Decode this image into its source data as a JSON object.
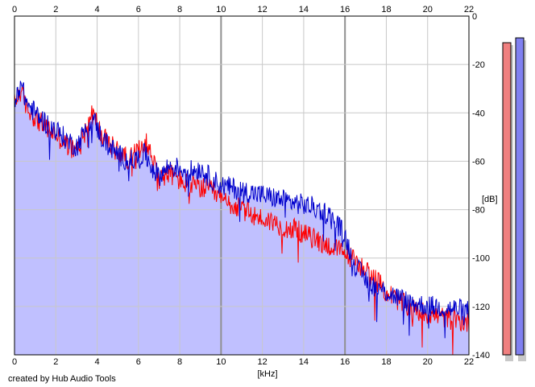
{
  "credit": "created by Hub Audio Tools",
  "colors": {
    "background": "#ffffff",
    "plot_background": "#ffffff",
    "fill": "#c0c0ff",
    "grid_minor": "#c8c8c8",
    "grid_major": "#909090",
    "left_channel": "#ff0000",
    "right_channel": "#0000cc",
    "meter_left": "#f08080",
    "meter_right": "#8080f0",
    "meter_shadow": "#c8c8c8"
  },
  "chart_data": {
    "type": "line",
    "xlabel": "[kHz]",
    "ylabel": "[dB]",
    "xlim": [
      0,
      22
    ],
    "ylim": [
      -140,
      0
    ],
    "x_ticks": [
      "0",
      "2",
      "4",
      "6",
      "8",
      "10",
      "12",
      "14",
      "16",
      "18",
      "20",
      "22"
    ],
    "x_tick_values": [
      0,
      2,
      4,
      6,
      8,
      10,
      12,
      14,
      16,
      18,
      20,
      22
    ],
    "y_ticks": [
      "0",
      "-20",
      "-40",
      "-60",
      "-80",
      "-100",
      "-120",
      "-140"
    ],
    "y_tick_values": [
      0,
      -20,
      -40,
      -60,
      -80,
      -100,
      -120,
      -140
    ],
    "grid": true,
    "major_x_gridlines": [
      10,
      16
    ],
    "series": [
      {
        "color": "#ff0000",
        "x": [
          0,
          0.3,
          0.6,
          1.0,
          1.5,
          2.0,
          2.5,
          3.0,
          3.5,
          3.8,
          4.2,
          4.6,
          5.0,
          5.5,
          6.0,
          6.3,
          6.7,
          7.0,
          7.5,
          8.0,
          8.5,
          9.0,
          9.5,
          10.0,
          10.5,
          11.0,
          11.5,
          12.0,
          12.5,
          13.0,
          13.5,
          14.0,
          14.5,
          15.0,
          15.5,
          16.0,
          16.5,
          17.0,
          17.5,
          18.0,
          18.5,
          19.0,
          19.5,
          20.0,
          20.5,
          21.0,
          21.5,
          22.0
        ],
        "values": [
          -36,
          -31,
          -38,
          -42,
          -46,
          -49,
          -53,
          -56,
          -45,
          -40,
          -49,
          -53,
          -56,
          -59,
          -56,
          -51,
          -59,
          -67,
          -65,
          -68,
          -70,
          -71,
          -72,
          -76,
          -78,
          -80,
          -82,
          -84,
          -85,
          -87,
          -88,
          -90,
          -92,
          -94,
          -96,
          -98,
          -101,
          -105,
          -109,
          -114,
          -117,
          -120,
          -122,
          -123,
          -124,
          -125,
          -126,
          -127
        ]
      },
      {
        "color": "#0000cc",
        "x": [
          0,
          0.3,
          0.6,
          1.0,
          1.5,
          2.0,
          2.5,
          3.0,
          3.5,
          3.8,
          4.2,
          4.6,
          5.0,
          5.5,
          6.0,
          6.3,
          6.7,
          7.0,
          7.5,
          8.0,
          8.5,
          9.0,
          9.5,
          10.0,
          10.5,
          11.0,
          11.5,
          12.0,
          12.5,
          13.0,
          13.5,
          14.0,
          14.5,
          15.0,
          15.5,
          16.0,
          16.5,
          17.0,
          17.5,
          18.0,
          18.5,
          19.0,
          19.5,
          20.0,
          20.5,
          21.0,
          21.5,
          22.0
        ],
        "values": [
          -34,
          -28,
          -36,
          -40,
          -44,
          -47,
          -51,
          -54,
          -46,
          -42,
          -50,
          -54,
          -57,
          -60,
          -59,
          -57,
          -63,
          -66,
          -62,
          -63,
          -64,
          -63,
          -67,
          -70,
          -71,
          -72,
          -73,
          -74,
          -75,
          -76,
          -77,
          -78,
          -79,
          -81,
          -84,
          -91,
          -103,
          -109,
          -112,
          -114,
          -116,
          -118,
          -119,
          -120,
          -120,
          -121,
          -121,
          -122
        ]
      }
    ],
    "meters": [
      {
        "color": "#f08080",
        "level_db": -11
      },
      {
        "color": "#8080f0",
        "level_db": -9
      }
    ]
  }
}
